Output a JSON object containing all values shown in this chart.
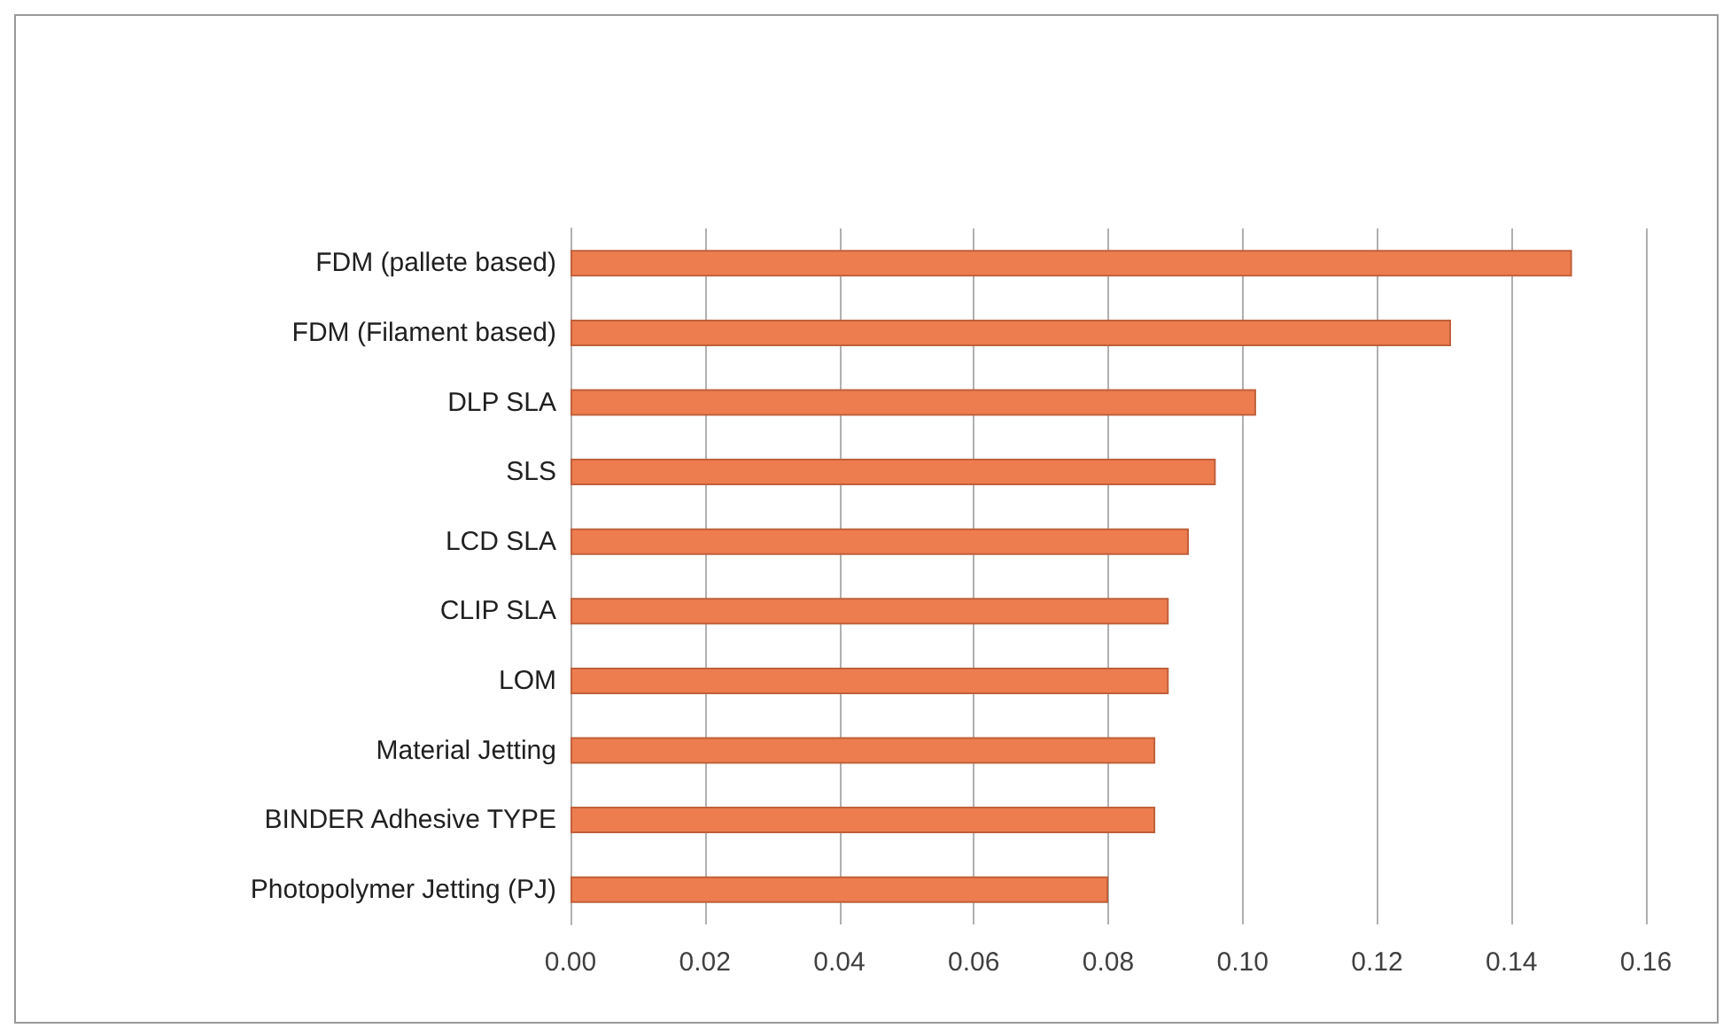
{
  "chart_data": {
    "type": "bar",
    "orientation": "horizontal",
    "categories": [
      "FDM (pallete based)",
      "FDM (Filament based)",
      "DLP SLA",
      "SLS",
      "LCD SLA",
      "CLIP SLA",
      "LOM",
      "Material Jetting",
      "BINDER Adhesive TYPE",
      "Photopolymer Jetting (PJ)"
    ],
    "values": [
      0.149,
      0.131,
      0.102,
      0.096,
      0.092,
      0.089,
      0.089,
      0.087,
      0.087,
      0.08
    ],
    "color": "#ed7d4f",
    "xlim": [
      0,
      0.16
    ],
    "xticks": [
      {
        "value": 0,
        "label": "0.00"
      },
      {
        "value": 0.02,
        "label": "0.02"
      },
      {
        "value": 0.04,
        "label": "0.04"
      },
      {
        "value": 0.06,
        "label": "0.06"
      },
      {
        "value": 0.08,
        "label": "0.08"
      },
      {
        "value": 0.1,
        "label": "0.10"
      },
      {
        "value": 0.12,
        "label": "0.12"
      },
      {
        "value": 0.14,
        "label": "0.14"
      },
      {
        "value": 0.16,
        "label": "0.16"
      }
    ],
    "grid": "x"
  }
}
